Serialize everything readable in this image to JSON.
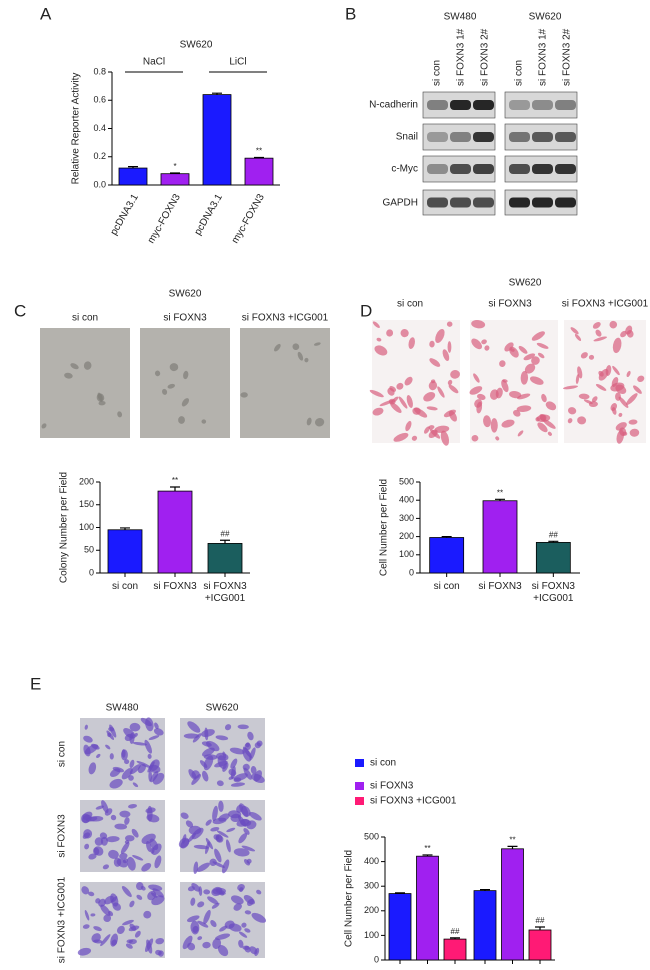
{
  "panel_labels": [
    "A",
    "B",
    "C",
    "D",
    "E"
  ],
  "chart_data": [
    {
      "type": "bar",
      "title": "SW620",
      "y_label": "Relative Reporter Activity",
      "group_labels": [
        "NaCl",
        "LiCl"
      ],
      "categories": [
        "pcDNA3.1",
        "myc-FOXN3",
        "pcDNA3.1",
        "myc-FOXN3"
      ],
      "values": [
        0.12,
        0.08,
        0.64,
        0.19
      ],
      "errors": [
        0.01,
        0.005,
        0.01,
        0.005
      ],
      "annotations": [
        null,
        "*",
        null,
        "**"
      ],
      "colors": [
        "#1a1aff",
        "#a020f0",
        "#1a1aff",
        "#a020f0"
      ],
      "ylim": [
        0,
        0.8
      ],
      "yticks": [
        {
          "value": 0,
          "label": "0.0"
        },
        0.2,
        0.4,
        0.6,
        0.8
      ]
    },
    {
      "type": "bar",
      "y_label": "Colony Number per Field",
      "categories": [
        "si con",
        "si FOXN3",
        "si FOXN3\n+ICG001"
      ],
      "values": [
        95,
        180,
        65
      ],
      "errors": [
        4,
        9,
        7
      ],
      "annotations": [
        null,
        "**",
        "##"
      ],
      "colors": [
        "#1a1aff",
        "#a020f0",
        "#1b5e5e"
      ],
      "ylim": [
        0,
        200
      ],
      "yticks": [
        0,
        50,
        100,
        150,
        200
      ]
    },
    {
      "type": "bar",
      "y_label": "Cell Number per Field",
      "categories": [
        "si con",
        "si FOXN3",
        "si FOXN3\n+ICG001"
      ],
      "values": [
        195,
        397,
        168
      ],
      "errors": [
        5,
        8,
        6
      ],
      "annotations": [
        null,
        "**",
        "##"
      ],
      "colors": [
        "#1a1aff",
        "#a020f0",
        "#1b5e5e"
      ],
      "ylim": [
        0,
        500
      ],
      "yticks": [
        0,
        100,
        200,
        300,
        400,
        500
      ]
    },
    {
      "type": "bar",
      "y_label": "Cell Number per Field",
      "categories": [
        null,
        null
      ],
      "series": [
        {
          "name": "si con",
          "color": "#1a1aff",
          "values": [
            270,
            282
          ],
          "errors": [
            3,
            4
          ]
        },
        {
          "name": "si FOXN3",
          "color": "#a020f0",
          "values": [
            422,
            452
          ],
          "errors": [
            5,
            10
          ],
          "annotations": [
            "**",
            "**"
          ]
        },
        {
          "name": "si FOXN3 +ICG001",
          "color": "#ff1a75",
          "values": [
            85,
            122
          ],
          "errors": [
            5,
            12
          ],
          "annotations": [
            "##",
            "##"
          ]
        }
      ],
      "ylim": [
        0,
        500
      ],
      "yticks": [
        0,
        100,
        200,
        300,
        400,
        500
      ]
    }
  ],
  "western_blot": {
    "cell_lines": [
      "SW480",
      "SW620"
    ],
    "lanes": [
      "si con",
      "si FOXN3  1#",
      "si FOXN3  2#"
    ],
    "proteins": [
      "N-cadherin",
      "Snail",
      "c-Myc",
      "GAPDH"
    ]
  },
  "colony_images": {
    "title": "SW620",
    "labels": [
      "si con",
      "si FOXN3",
      "si FOXN3 +ICG001"
    ]
  },
  "invasion_images_d": {
    "title": "SW620",
    "labels": [
      "si con",
      "si FOXN3",
      "si FOXN3 +ICG001"
    ]
  },
  "invasion_images_e": {
    "columns": [
      "SW480",
      "SW620"
    ],
    "rows": [
      "si con",
      "si FOXN3",
      "si FOXN3 +ICG001"
    ]
  }
}
